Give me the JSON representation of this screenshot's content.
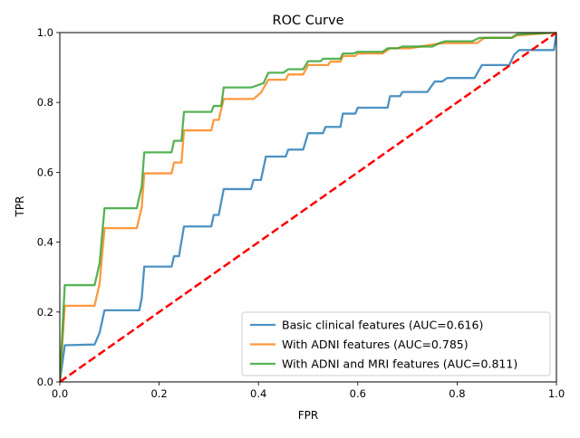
{
  "chart_data": {
    "type": "line",
    "title": "ROC Curve",
    "xlabel": "FPR",
    "ylabel": "TPR",
    "xlim": [
      0,
      1
    ],
    "ylim": [
      0,
      1
    ],
    "xticks": [
      "0.0",
      "0.2",
      "0.4",
      "0.6",
      "0.8",
      "1.0"
    ],
    "yticks": [
      "0.0",
      "0.2",
      "0.4",
      "0.6",
      "0.8",
      "1.0"
    ],
    "grid": false,
    "legend_position": "lower-right",
    "series": [
      {
        "name": "Basic clinical features (AUC=0.616)",
        "color": "#1f77b4",
        "x": [
          0,
          0.01,
          0.07,
          0.08,
          0.09,
          0.16,
          0.165,
          0.17,
          0.225,
          0.23,
          0.24,
          0.25,
          0.305,
          0.31,
          0.32,
          0.33,
          0.385,
          0.39,
          0.405,
          0.415,
          0.43,
          0.455,
          0.46,
          0.49,
          0.5,
          0.53,
          0.535,
          0.565,
          0.57,
          0.595,
          0.6,
          0.62,
          0.66,
          0.665,
          0.685,
          0.69,
          0.74,
          0.755,
          0.77,
          0.78,
          0.835,
          0.845,
          0.85,
          0.905,
          0.915,
          0.925,
          0.94,
          0.995,
          1.0
        ],
        "y": [
          0,
          0.105,
          0.107,
          0.14,
          0.205,
          0.205,
          0.24,
          0.33,
          0.33,
          0.36,
          0.36,
          0.445,
          0.445,
          0.478,
          0.478,
          0.552,
          0.552,
          0.578,
          0.578,
          0.645,
          0.645,
          0.645,
          0.665,
          0.665,
          0.712,
          0.712,
          0.73,
          0.73,
          0.768,
          0.768,
          0.785,
          0.785,
          0.785,
          0.818,
          0.818,
          0.83,
          0.83,
          0.86,
          0.86,
          0.87,
          0.87,
          0.895,
          0.907,
          0.907,
          0.937,
          0.95,
          0.95,
          0.95,
          1.0
        ]
      },
      {
        "name": "With ADNI features (AUC=0.785)",
        "color": "#ff7f0e",
        "x": [
          0,
          0.01,
          0.07,
          0.08,
          0.09,
          0.155,
          0.165,
          0.17,
          0.225,
          0.23,
          0.245,
          0.25,
          0.305,
          0.31,
          0.32,
          0.33,
          0.385,
          0.39,
          0.405,
          0.42,
          0.455,
          0.46,
          0.49,
          0.5,
          0.54,
          0.545,
          0.565,
          0.57,
          0.595,
          0.6,
          0.65,
          0.665,
          0.705,
          0.76,
          0.775,
          0.84,
          0.855,
          0.91,
          0.92,
          1.0
        ],
        "y": [
          0,
          0.218,
          0.218,
          0.28,
          0.44,
          0.44,
          0.5,
          0.597,
          0.597,
          0.628,
          0.628,
          0.72,
          0.72,
          0.75,
          0.75,
          0.81,
          0.81,
          0.81,
          0.828,
          0.865,
          0.865,
          0.88,
          0.88,
          0.907,
          0.907,
          0.917,
          0.917,
          0.933,
          0.933,
          0.94,
          0.94,
          0.955,
          0.955,
          0.968,
          0.97,
          0.97,
          0.985,
          0.985,
          0.992,
          1.0
        ]
      },
      {
        "name": "With ADNI and MRI features (AUC=0.811)",
        "color": "#2ca02c",
        "x": [
          0,
          0.01,
          0.07,
          0.08,
          0.09,
          0.155,
          0.165,
          0.17,
          0.225,
          0.23,
          0.245,
          0.25,
          0.305,
          0.31,
          0.325,
          0.33,
          0.385,
          0.39,
          0.41,
          0.42,
          0.45,
          0.46,
          0.49,
          0.5,
          0.525,
          0.53,
          0.565,
          0.57,
          0.59,
          0.6,
          0.65,
          0.66,
          0.68,
          0.69,
          0.75,
          0.765,
          0.775,
          0.83,
          0.845,
          0.91,
          0.92,
          1.0
        ],
        "y": [
          0,
          0.277,
          0.277,
          0.338,
          0.497,
          0.497,
          0.56,
          0.657,
          0.657,
          0.69,
          0.69,
          0.773,
          0.773,
          0.79,
          0.79,
          0.843,
          0.843,
          0.845,
          0.855,
          0.885,
          0.885,
          0.895,
          0.895,
          0.918,
          0.918,
          0.925,
          0.925,
          0.94,
          0.94,
          0.945,
          0.945,
          0.955,
          0.955,
          0.96,
          0.96,
          0.97,
          0.975,
          0.975,
          0.985,
          0.985,
          0.995,
          1.0
        ]
      }
    ],
    "reference_line": {
      "x": [
        0,
        1
      ],
      "y": [
        0,
        1
      ],
      "color": "#ff0000",
      "style": "dashed"
    }
  }
}
